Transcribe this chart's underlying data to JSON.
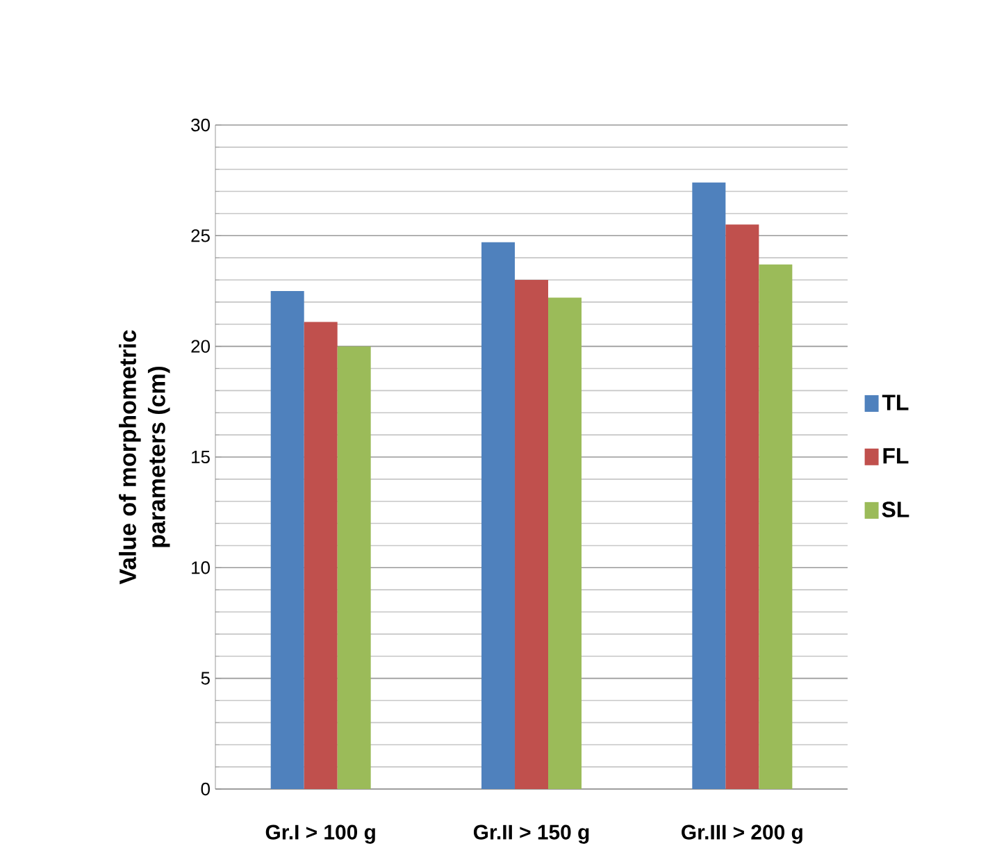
{
  "chart_data": {
    "type": "bar",
    "ylabel": "Value of morphometric parameters (cm)",
    "categories": [
      "Gr.I > 100 g",
      "Gr.II > 150 g",
      "Gr.III > 200 g"
    ],
    "series": [
      {
        "name": "TL",
        "color": "#4f81bd",
        "values": [
          22.5,
          24.7,
          27.4
        ]
      },
      {
        "name": "FL",
        "color": "#c0504d",
        "values": [
          21.1,
          23.0,
          25.5
        ]
      },
      {
        "name": "SL",
        "color": "#9bbb59",
        "values": [
          20.0,
          22.2,
          23.7
        ]
      }
    ],
    "ylim": [
      0,
      30
    ],
    "yticks": [
      0,
      5,
      10,
      15,
      20,
      25,
      30
    ],
    "grid": "y",
    "legend": "right"
  }
}
